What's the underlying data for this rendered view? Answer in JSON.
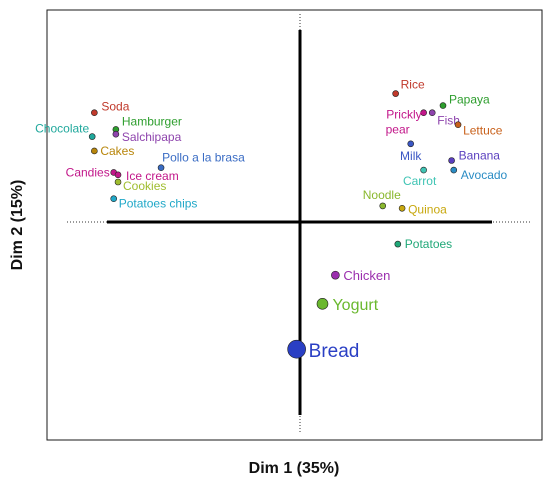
{
  "chart_data": {
    "type": "scatter",
    "title": "",
    "xlabel": "Dim 1 (35%)",
    "ylabel": "Dim 2 (15%)",
    "xlim": [
      -1.12,
      1.18
    ],
    "ylim": [
      -0.94,
      0.86
    ],
    "grid": false,
    "legend": "none",
    "points": [
      {
        "label": "Soda",
        "x": -0.9,
        "y": 0.43,
        "color": "#c0392b",
        "size": "small"
      },
      {
        "label": "Hamburger",
        "x": -0.8,
        "y": 0.36,
        "color": "#2e9e2e",
        "size": "small"
      },
      {
        "label": "Chocolate",
        "x": -0.91,
        "y": 0.33,
        "color": "#20a89c",
        "size": "small"
      },
      {
        "label": "Salchipapa",
        "x": -0.8,
        "y": 0.34,
        "color": "#8e44ad",
        "size": "small"
      },
      {
        "label": "Cakes",
        "x": -0.9,
        "y": 0.27,
        "color": "#b8860b",
        "size": "small"
      },
      {
        "label": "Pollo a la brasa",
        "x": -0.59,
        "y": 0.2,
        "color": "#3a6cc4",
        "size": "small"
      },
      {
        "label": "Candies",
        "x": -0.81,
        "y": 0.18,
        "color": "#c2178a",
        "size": "small"
      },
      {
        "label": "Ice cream",
        "x": -0.79,
        "y": 0.17,
        "color": "#c2178a",
        "size": "small"
      },
      {
        "label": "Cookies",
        "x": -0.79,
        "y": 0.14,
        "color": "#9fbd2e",
        "size": "small"
      },
      {
        "label": "Potatoes chips",
        "x": -0.81,
        "y": 0.07,
        "color": "#20a8c8",
        "size": "small"
      },
      {
        "label": "Rice",
        "x": 0.5,
        "y": 0.51,
        "color": "#c0392b",
        "size": "small"
      },
      {
        "label": "Papaya",
        "x": 0.72,
        "y": 0.46,
        "color": "#2e9e2e",
        "size": "small"
      },
      {
        "label": "Prickly pear",
        "x": 0.63,
        "y": 0.43,
        "color": "#c2178a",
        "size": "small"
      },
      {
        "label": "Fish",
        "x": 0.67,
        "y": 0.43,
        "color": "#8e44ad",
        "size": "small"
      },
      {
        "label": "Lettuce",
        "x": 0.79,
        "y": 0.38,
        "color": "#c8601a",
        "size": "small"
      },
      {
        "label": "Milk",
        "x": 0.57,
        "y": 0.3,
        "color": "#3a56c4",
        "size": "small"
      },
      {
        "label": "Banana",
        "x": 0.76,
        "y": 0.23,
        "color": "#5a3fbf",
        "size": "small"
      },
      {
        "label": "Carrot",
        "x": 0.63,
        "y": 0.19,
        "color": "#3fc4b4",
        "size": "small"
      },
      {
        "label": "Avocado",
        "x": 0.77,
        "y": 0.19,
        "color": "#2a8cc4",
        "size": "small"
      },
      {
        "label": "Noodle",
        "x": 0.44,
        "y": 0.04,
        "color": "#8ab82e",
        "size": "small"
      },
      {
        "label": "Quinoa",
        "x": 0.53,
        "y": 0.03,
        "color": "#c8a80e",
        "size": "small"
      },
      {
        "label": "Potatoes",
        "x": 0.51,
        "y": -0.12,
        "color": "#20a878",
        "size": "small"
      },
      {
        "label": "Chicken",
        "x": 0.22,
        "y": -0.25,
        "color": "#9b2fae",
        "size": "medium"
      },
      {
        "label": "Yogurt",
        "x": 0.16,
        "y": -0.37,
        "color": "#6ab82e",
        "size": "large"
      },
      {
        "label": "Bread",
        "x": 0.04,
        "y": -0.56,
        "color": "#2a3fc4",
        "size": "xlarge"
      }
    ]
  }
}
